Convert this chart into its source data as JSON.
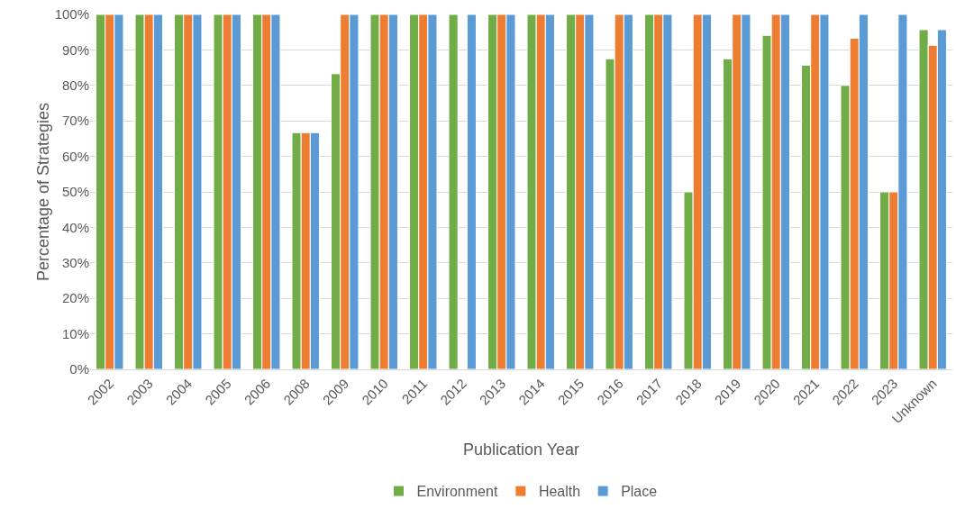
{
  "chart_data": {
    "type": "bar",
    "xlabel": "Publication Year",
    "ylabel": "Percentage of Strategies",
    "categories": [
      "2002",
      "2003",
      "2004",
      "2005",
      "2006",
      "2008",
      "2009",
      "2010",
      "2011",
      "2012",
      "2013",
      "2014",
      "2015",
      "2016",
      "2017",
      "2018",
      "2019",
      "2020",
      "2021",
      "2022",
      "2023",
      "Unknown"
    ],
    "series": [
      {
        "name": "Environment",
        "color": "#70ad47",
        "values": [
          100,
          100,
          100,
          100,
          100,
          66.7,
          83.3,
          100,
          100,
          100,
          100,
          100,
          100,
          87.5,
          100,
          50,
          87.5,
          94.1,
          85.7,
          80,
          50,
          95.7
        ]
      },
      {
        "name": "Health",
        "color": "#ed7d31",
        "values": [
          100,
          100,
          100,
          100,
          100,
          66.7,
          100,
          100,
          100,
          null,
          100,
          100,
          100,
          100,
          100,
          100,
          100,
          100,
          100,
          93.3,
          50,
          91.3
        ]
      },
      {
        "name": "Place",
        "color": "#5b9bd5",
        "values": [
          100,
          100,
          100,
          100,
          100,
          66.7,
          100,
          100,
          100,
          100,
          100,
          100,
          100,
          100,
          100,
          100,
          100,
          100,
          100,
          100,
          100,
          95.7
        ]
      }
    ],
    "ylim": [
      0,
      100
    ],
    "yticks": [
      {
        "value": 0,
        "label": "0%"
      },
      {
        "value": 10,
        "label": "10%"
      },
      {
        "value": 20,
        "label": "20%"
      },
      {
        "value": 30,
        "label": "30%"
      },
      {
        "value": 40,
        "label": "40%"
      },
      {
        "value": 50,
        "label": "50%"
      },
      {
        "value": 60,
        "label": "60%"
      },
      {
        "value": 70,
        "label": "70%"
      },
      {
        "value": 80,
        "label": "80%"
      },
      {
        "value": 90,
        "label": "90%"
      },
      {
        "value": 100,
        "label": "100%"
      }
    ],
    "grid": "y",
    "legend": "bottom"
  }
}
